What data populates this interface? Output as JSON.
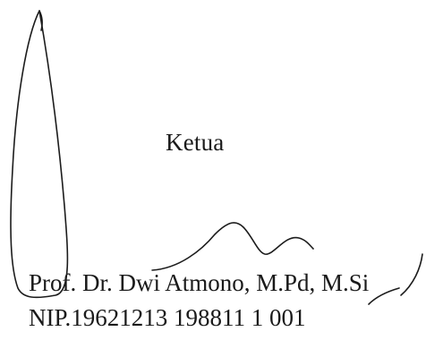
{
  "signature_block": {
    "role": "Ketua",
    "name": "Prof. Dr. Dwi Atmono, M.Pd, M.Si",
    "nip": "NIP.19621213 198811 1 001"
  },
  "signature_icon": "handwritten-signature",
  "colors": {
    "background": "#ffffff",
    "ink": "#1a1a1a"
  }
}
